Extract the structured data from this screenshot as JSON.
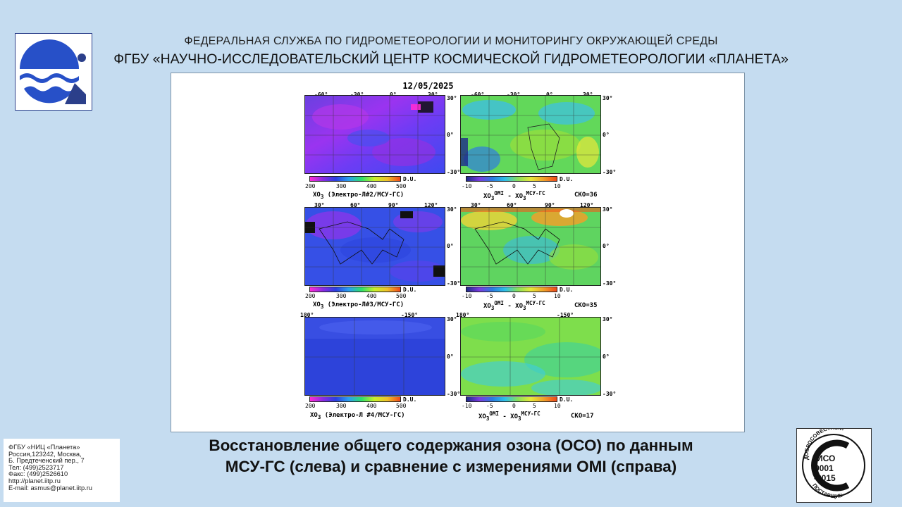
{
  "header": {
    "line1": "ФЕДЕРАЛЬНАЯ СЛУЖБА ПО ГИДРОМЕТЕОРОЛОГИИ И МОНИТОРИНГУ ОКРУЖАЮЩЕЙ СРЕДЫ",
    "line2": "ФГБУ «НАУЧНО-ИССЛЕДОВАТЕЛЬСКИЙ ЦЕНТР КОСМИЧЕСКОЙ ГИДРОМЕТЕОРОЛОГИИ «ПЛАНЕТА»"
  },
  "figure": {
    "date": "12/05/2025",
    "du": "D.U.",
    "left_scale": [
      "200",
      "300",
      "400",
      "500"
    ],
    "right_scale": [
      "-10",
      "-5",
      "0",
      "5",
      "10"
    ],
    "lat_labels": [
      "30°",
      "0°",
      "-30°"
    ],
    "rows": [
      {
        "lon_labels": [
          "-60°",
          "-30°",
          "0°",
          "30°"
        ],
        "left_caption_pre": "XO",
        "left_caption_sub": "3",
        "left_caption_post": " (Электро-Л#2/МСУ-ГС)",
        "right_caption": {
          "a": "XO",
          "a_sub": "3",
          "a_sup": "OMI",
          "minus": " - XO",
          "b_sub": "3",
          "b_sup": "МСУ-ГС"
        },
        "sko": "СКО=36"
      },
      {
        "lon_labels": [
          "30°",
          "60°",
          "90°",
          "120°"
        ],
        "left_caption_pre": "XO",
        "left_caption_sub": "3",
        "left_caption_post": " (Электро-Л#3/МСУ-ГС)",
        "right_caption": {
          "a": "XO",
          "a_sub": "3",
          "a_sup": "OMI",
          "minus": " - XO",
          "b_sub": "3",
          "b_sup": "МСУ-ГС"
        },
        "sko": "СКО=35"
      },
      {
        "lon_labels": [
          "180°",
          "-150°"
        ],
        "left_caption_pre": "XO",
        "left_caption_sub": "3",
        "left_caption_post": " (Электро-Л #4/МСУ-ГС)",
        "right_caption": {
          "a": "XO",
          "a_sub": "3",
          "a_sup": "OMI",
          "minus": " - XO",
          "b_sub": "3",
          "b_sup": "МСУ-ГС"
        },
        "sko": "СКО=17"
      }
    ]
  },
  "title": {
    "line1": "Восстановление общего содержания озона (ОСО) по данным",
    "line2": "МСУ-ГС (слева) и сравнение с измерениями OMI (справа)"
  },
  "contact": {
    "lines": [
      "ФГБУ «НИЦ «Планета»",
      "Россия,123242, Москва,",
      "Б. Предтеченский пер., 7",
      "Тел:   (499)2523717",
      "Факс: (499)2526610",
      "http://planet.iitp.ru",
      "E-mail: asmus@planet.iitp.ru"
    ]
  },
  "iso_badge": {
    "top": "ДОБРОСОВЕСТНЫЙ",
    "line1": "ИСО",
    "line2": "9001",
    "line3": "-2015",
    "bottom": "ПОСТАВЩИК"
  },
  "colors": {
    "background": "#c5dcf0",
    "logo_blue": "#2b4fb3"
  }
}
